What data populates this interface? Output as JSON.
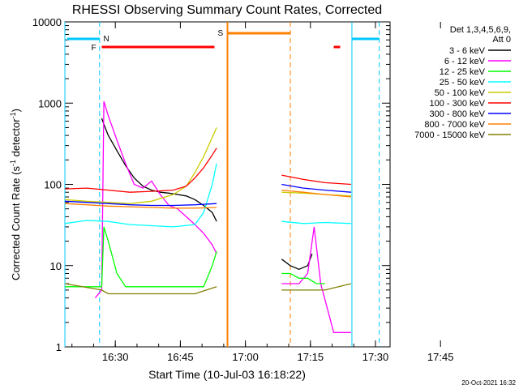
{
  "chart_data": {
    "type": "line",
    "title": "RHESSI Observing Summary Count Rates, Corrected",
    "xlabel": "Start Time (10-Jul-03 16:18:22)",
    "ylabel": "Corrected Count Rate (s",
    "ylabel_sup1": "-1",
    "ylabel_mid": " detector",
    "ylabel_sup2": "-1",
    "ylabel_end": ")",
    "yscale": "log",
    "ylim": [
      1,
      10000
    ],
    "xlim_min": [
      0,
      75
    ],
    "x_unit": "minutes after 16:18:22",
    "x_ticks": [
      "16:30",
      "16:45",
      "17:00",
      "17:15",
      "17:30",
      "17:45"
    ],
    "y_ticks": [
      "1",
      "10",
      "100",
      "1000",
      "10000"
    ],
    "legend_header": [
      "Det 1,3,4,5,6,9,",
      "Att 0"
    ],
    "legend_position": "right",
    "timestamp": "20-Oct-2021 16:32",
    "markers": [
      {
        "label": "N",
        "color": "#00c8ff"
      },
      {
        "label": "F",
        "color": "#ff0000"
      },
      {
        "label": "S",
        "color": "#ff8000"
      }
    ],
    "series": [
      {
        "name": "3 - 6 keV",
        "color": "#000000",
        "x": [
          8.5,
          9,
          10,
          12,
          14,
          16,
          18,
          20,
          22,
          24,
          26,
          28,
          30,
          32,
          34,
          35,
          50,
          52,
          54,
          56,
          57
        ],
        "y": [
          650,
          550,
          400,
          260,
          170,
          120,
          95,
          85,
          80,
          78,
          75,
          72,
          65,
          55,
          45,
          35,
          12,
          10,
          9,
          10,
          14
        ]
      },
      {
        "name": "6 - 12 keV",
        "color": "#ff00ff",
        "x": [
          7,
          8.5,
          9,
          10,
          12,
          14,
          16,
          18,
          20,
          22,
          24,
          26,
          28,
          30,
          32,
          34,
          35,
          50,
          52,
          54,
          56,
          57.5,
          59,
          62,
          66
        ],
        "y": [
          4,
          5,
          1050,
          700,
          350,
          180,
          100,
          90,
          110,
          75,
          55,
          50,
          40,
          32,
          25,
          18,
          14,
          6,
          6,
          6,
          8,
          30,
          6,
          1.5,
          1.5
        ]
      },
      {
        "name": "12 - 25 keV",
        "color": "#00ff00",
        "x": [
          0,
          8.5,
          9,
          10,
          12,
          14,
          16,
          18,
          20,
          22,
          24,
          26,
          28,
          30,
          32,
          34,
          35,
          50,
          52,
          54,
          56,
          58,
          60
        ],
        "y": [
          5.5,
          5.5,
          30,
          20,
          8,
          5.5,
          5.5,
          5.5,
          5.5,
          5.5,
          5.5,
          5.5,
          5.5,
          5.5,
          5.5,
          10,
          15,
          8,
          8,
          7,
          7,
          6,
          6
        ]
      },
      {
        "name": "25 - 50 keV",
        "color": "#00ffff",
        "x": [
          0,
          5,
          10,
          15,
          20,
          25,
          30,
          32,
          34,
          35,
          50,
          55,
          60,
          66
        ],
        "y": [
          33,
          36,
          35,
          32,
          31,
          30,
          32,
          45,
          100,
          180,
          35,
          33,
          34,
          33
        ]
      },
      {
        "name": "50 - 100 keV",
        "color": "#cccc00",
        "x": [
          0,
          5,
          10,
          15,
          20,
          25,
          28,
          30,
          32,
          34,
          35,
          50,
          55,
          60,
          66
        ],
        "y": [
          65,
          62,
          60,
          58,
          62,
          75,
          95,
          140,
          220,
          380,
          500,
          80,
          78,
          75,
          72
        ]
      },
      {
        "name": "100 - 300 keV",
        "color": "#ff0000",
        "x": [
          0,
          5,
          10,
          15,
          20,
          25,
          28,
          30,
          32,
          34,
          35,
          50,
          55,
          60,
          66
        ],
        "y": [
          88,
          90,
          85,
          80,
          82,
          85,
          95,
          120,
          160,
          230,
          280,
          130,
          115,
          105,
          100
        ]
      },
      {
        "name": "300 - 800 keV",
        "color": "#0000ff",
        "x": [
          0,
          5,
          10,
          15,
          20,
          25,
          30,
          35,
          50,
          55,
          60,
          66
        ],
        "y": [
          62,
          60,
          58,
          56,
          55,
          55,
          56,
          58,
          100,
          90,
          85,
          80
        ]
      },
      {
        "name": "800 - 7000 keV",
        "color": "#ff8000",
        "x": [
          0,
          5,
          10,
          15,
          20,
          25,
          30,
          35,
          50,
          55,
          60,
          66
        ],
        "y": [
          58,
          56,
          54,
          53,
          52,
          51,
          51,
          52,
          85,
          80,
          75,
          70
        ]
      },
      {
        "name": "7000 - 15000 keV",
        "color": "#808000",
        "x": [
          0,
          8.5,
          10,
          20,
          30,
          35,
          50,
          55,
          60,
          66
        ],
        "y": [
          6,
          5,
          4.5,
          4.5,
          4.5,
          5.5,
          5,
          5,
          5,
          6
        ]
      }
    ]
  }
}
